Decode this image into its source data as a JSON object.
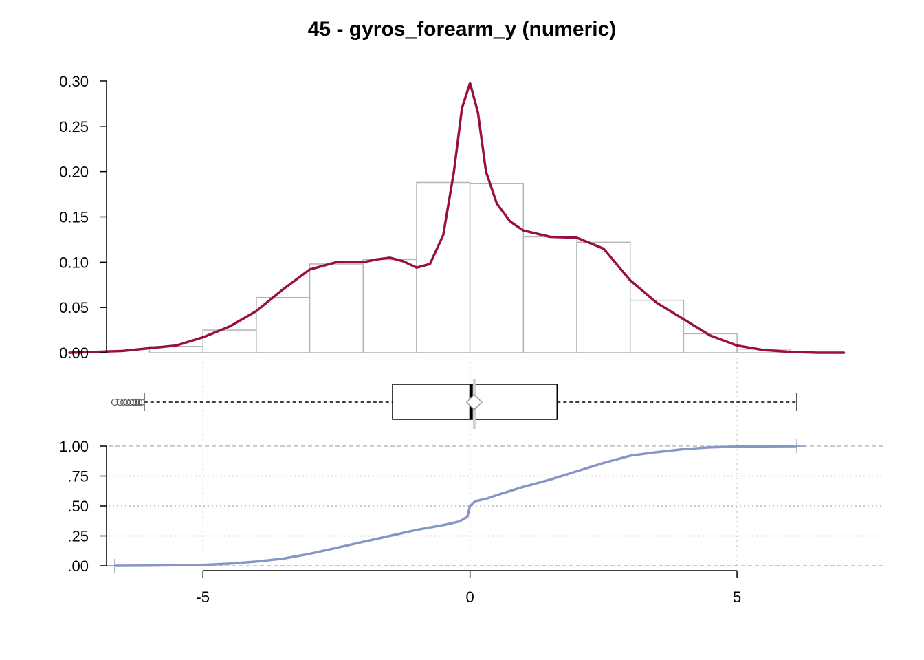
{
  "title": "45 - gyros_forearm_y (numeric)",
  "colors": {
    "density": "#990f45",
    "ecdf": "#8896c4",
    "hist_bar_stroke": "#b4b4b4",
    "grid": "#b8b8b8"
  },
  "chart_data": [
    {
      "type": "bar",
      "subtype": "histogram-with-density",
      "bins": [
        {
          "x0": -6,
          "x1": -5,
          "y": 0.007
        },
        {
          "x0": -5,
          "x1": -4,
          "y": 0.025
        },
        {
          "x0": -4,
          "x1": -3,
          "y": 0.061
        },
        {
          "x0": -3,
          "x1": -2,
          "y": 0.098
        },
        {
          "x0": -2,
          "x1": -1,
          "y": 0.103
        },
        {
          "x0": -1,
          "x1": 0,
          "y": 0.188
        },
        {
          "x0": 0,
          "x1": 1,
          "y": 0.187
        },
        {
          "x0": 1,
          "x1": 2,
          "y": 0.128
        },
        {
          "x0": 2,
          "x1": 3,
          "y": 0.122
        },
        {
          "x0": 3,
          "x1": 4,
          "y": 0.058
        },
        {
          "x0": 4,
          "x1": 5,
          "y": 0.021
        },
        {
          "x0": 5,
          "x1": 6,
          "y": 0.004
        }
      ],
      "density": {
        "x": [
          -7.5,
          -7,
          -6.5,
          -6,
          -5.5,
          -5,
          -4.5,
          -4,
          -3.5,
          -3,
          -2.5,
          -2,
          -1.75,
          -1.5,
          -1.25,
          -1,
          -0.75,
          -0.5,
          -0.3,
          -0.15,
          0,
          0.15,
          0.3,
          0.5,
          0.75,
          1,
          1.5,
          2,
          2.5,
          3,
          3.5,
          4,
          4.5,
          5,
          5.5,
          6,
          6.5,
          7
        ],
        "y": [
          0.0,
          0.001,
          0.002,
          0.005,
          0.008,
          0.017,
          0.029,
          0.046,
          0.07,
          0.092,
          0.1,
          0.1,
          0.103,
          0.105,
          0.101,
          0.094,
          0.098,
          0.13,
          0.2,
          0.27,
          0.298,
          0.265,
          0.2,
          0.165,
          0.145,
          0.135,
          0.128,
          0.127,
          0.115,
          0.08,
          0.055,
          0.037,
          0.019,
          0.008,
          0.003,
          0.001,
          0.0,
          0.0
        ]
      },
      "yticks": [
        "0.00",
        "0.05",
        "0.10",
        "0.15",
        "0.20",
        "0.25",
        "0.30"
      ],
      "ylim": [
        0,
        0.3
      ],
      "xlim": [
        -8.8,
        8.5
      ]
    },
    {
      "type": "boxplot",
      "whisker_low": -6.1,
      "q1": -1.45,
      "median": 0.02,
      "mean": 0.08,
      "q3": 1.63,
      "whisker_high": 6.12,
      "outliers": [
        -6.65,
        -6.55,
        -6.48,
        -6.42,
        -6.36,
        -6.3,
        -6.25,
        -6.2,
        -6.15
      ]
    },
    {
      "type": "line",
      "subtype": "ecdf",
      "x": [
        -6.65,
        -6,
        -5,
        -4.5,
        -4,
        -3.5,
        -3,
        -2.5,
        -2,
        -1.5,
        -1,
        -0.5,
        -0.2,
        -0.05,
        0,
        0.1,
        0.3,
        0.5,
        1,
        1.5,
        2,
        2.5,
        3,
        3.5,
        4,
        4.5,
        5,
        5.5,
        6.12
      ],
      "y": [
        0.0,
        0.002,
        0.007,
        0.018,
        0.035,
        0.06,
        0.1,
        0.15,
        0.2,
        0.25,
        0.3,
        0.34,
        0.37,
        0.41,
        0.5,
        0.54,
        0.56,
        0.59,
        0.66,
        0.72,
        0.79,
        0.86,
        0.92,
        0.95,
        0.975,
        0.99,
        0.996,
        0.999,
        1.0
      ],
      "yticks": [
        "1.00",
        ".75",
        ".50",
        ".25",
        ".00"
      ],
      "ylim": [
        0,
        1
      ],
      "xticks": [
        "-5",
        "0",
        "5"
      ]
    }
  ]
}
